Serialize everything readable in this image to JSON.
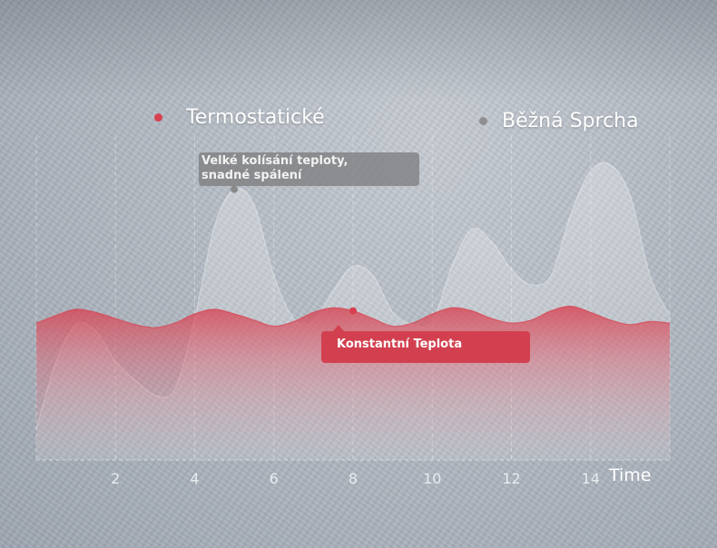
{
  "chart_data": {
    "type": "area",
    "x_ticks": [
      2,
      4,
      6,
      8,
      10,
      12,
      14
    ],
    "xlabel": "Time",
    "xlim": [
      0,
      16
    ],
    "ylim": [
      0,
      10
    ],
    "grid": "vertical dashed",
    "legend_position": "top",
    "series": [
      {
        "name": "Termostatické",
        "color": "#d8404f",
        "x": [
          0,
          0.5,
          1,
          1.5,
          2,
          2.5,
          3,
          3.5,
          4,
          4.5,
          5,
          5.5,
          6,
          6.5,
          7,
          7.5,
          8,
          8.5,
          9,
          9.5,
          10,
          10.5,
          11,
          11.5,
          12,
          12.5,
          13,
          13.5,
          14,
          14.5,
          15,
          15.5,
          16
        ],
        "y": [
          4.45,
          4.7,
          4.9,
          4.8,
          4.6,
          4.4,
          4.3,
          4.45,
          4.75,
          4.9,
          4.75,
          4.55,
          4.35,
          4.5,
          4.8,
          4.95,
          4.85,
          4.6,
          4.35,
          4.45,
          4.75,
          4.95,
          4.85,
          4.6,
          4.45,
          4.55,
          4.85,
          5.0,
          4.8,
          4.55,
          4.4,
          4.5,
          4.45
        ]
      },
      {
        "name": "Běžná Sprcha",
        "color": "#8a8a8a",
        "x": [
          0,
          0.5,
          1,
          1.5,
          2,
          2.5,
          3,
          3.5,
          4,
          4.5,
          5,
          5.5,
          6,
          6.5,
          7,
          7.5,
          8,
          8.5,
          9,
          9.5,
          10,
          10.5,
          11,
          11.5,
          12,
          12.5,
          13,
          13.5,
          14,
          14.5,
          15,
          15.5,
          16
        ],
        "y": [
          1.0,
          3.2,
          4.4,
          4.2,
          3.2,
          2.6,
          2.1,
          2.3,
          4.6,
          7.6,
          8.8,
          8.3,
          6.0,
          4.6,
          4.5,
          5.5,
          6.3,
          6.0,
          4.8,
          4.4,
          4.5,
          6.3,
          7.5,
          7.1,
          6.2,
          5.7,
          6.0,
          8.0,
          9.4,
          9.6,
          8.6,
          6.0,
          4.7
        ]
      }
    ],
    "annotations": [
      {
        "series": "Běžná Sprcha",
        "x": 5,
        "text_line1": "Velké kolísání teploty,",
        "text_line2": "snadné spálení"
      },
      {
        "series": "Termostatické",
        "x": 8,
        "text": "Konstantní Teplota"
      }
    ]
  }
}
